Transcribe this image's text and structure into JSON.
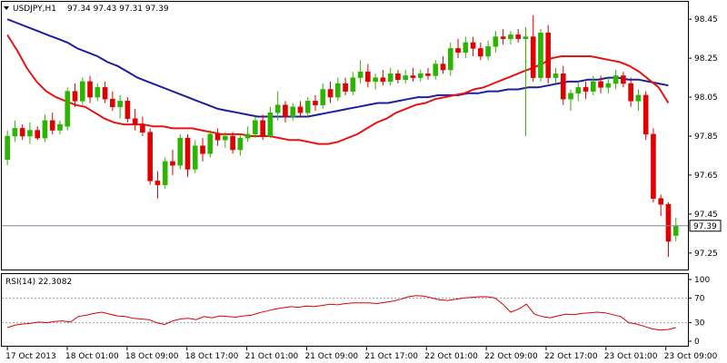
{
  "header": {
    "symbol": "USDJPY,H1",
    "ohlc": "97.34 97.43 97.31 97.39",
    "rsi_label": "RSI(14) 22.3082"
  },
  "price_tag": "97.39",
  "colors": {
    "bull": "#2db400",
    "bear": "#e00000",
    "ma_fast": "#e81414",
    "ma_slow": "#1e1ea0",
    "rsi": "#e00000",
    "grid": "#9aa0a6",
    "frame": "#000000",
    "tag_bg": "#ffffff"
  },
  "chart_data": [
    {
      "type": "candlestick",
      "timeframe": "H1",
      "y_ticks": [
        97.25,
        97.45,
        97.65,
        97.85,
        98.05,
        98.25,
        98.45
      ],
      "ylim": [
        97.17,
        98.53
      ],
      "current_price": 97.39,
      "x_tick_labels": [
        "17 Oct 2013",
        "18 Oct 01:00",
        "18 Oct 09:00",
        "18 Oct 17:00",
        "21 Oct 01:00",
        "21 Oct 09:00",
        "21 Oct 17:00",
        "22 Oct 01:00",
        "22 Oct 09:00",
        "22 Oct 17:00",
        "23 Oct 01:00",
        "23 Oct 09:00"
      ],
      "candles": [
        [
          97.73,
          97.88,
          97.7,
          97.85
        ],
        [
          97.85,
          97.93,
          97.82,
          97.89
        ],
        [
          97.89,
          97.91,
          97.83,
          97.85
        ],
        [
          97.85,
          97.92,
          97.81,
          97.88
        ],
        [
          97.88,
          97.9,
          97.83,
          97.84
        ],
        [
          97.84,
          97.96,
          97.82,
          97.93
        ],
        [
          97.93,
          97.97,
          97.86,
          97.88
        ],
        [
          97.88,
          97.93,
          97.86,
          97.91
        ],
        [
          97.9,
          98.1,
          97.88,
          98.08
        ],
        [
          98.08,
          98.12,
          98.0,
          98.03
        ],
        [
          98.03,
          98.15,
          98.01,
          98.13
        ],
        [
          98.13,
          98.16,
          98.02,
          98.05
        ],
        [
          98.05,
          98.12,
          98.03,
          98.1
        ],
        [
          98.1,
          98.13,
          98.02,
          98.04
        ],
        [
          98.04,
          98.08,
          97.98,
          98.0
        ],
        [
          98.0,
          98.06,
          97.94,
          98.03
        ],
        [
          98.03,
          98.05,
          97.92,
          97.94
        ],
        [
          97.94,
          97.99,
          97.88,
          97.91
        ],
        [
          97.91,
          97.95,
          97.85,
          97.87
        ],
        [
          97.87,
          97.89,
          97.6,
          97.62
        ],
        [
          97.62,
          97.67,
          97.53,
          97.6
        ],
        [
          97.6,
          97.74,
          97.58,
          97.72
        ],
        [
          97.72,
          97.78,
          97.65,
          97.7
        ],
        [
          97.7,
          97.86,
          97.68,
          97.84
        ],
        [
          97.84,
          97.86,
          97.64,
          97.68
        ],
        [
          97.68,
          97.83,
          97.66,
          97.8
        ],
        [
          97.8,
          97.84,
          97.72,
          97.76
        ],
        [
          97.76,
          97.88,
          97.74,
          97.86
        ],
        [
          97.86,
          97.89,
          97.8,
          97.83
        ],
        [
          97.83,
          97.87,
          97.79,
          97.85
        ],
        [
          97.85,
          97.87,
          97.76,
          97.78
        ],
        [
          97.78,
          97.86,
          97.75,
          97.84
        ],
        [
          97.84,
          97.9,
          97.82,
          97.86
        ],
        [
          97.86,
          97.95,
          97.84,
          97.93
        ],
        [
          97.93,
          97.96,
          97.83,
          97.85
        ],
        [
          97.85,
          98.0,
          97.84,
          97.97
        ],
        [
          97.97,
          98.08,
          97.93,
          98.01
        ],
        [
          98.01,
          98.03,
          97.92,
          97.95
        ],
        [
          97.95,
          98.02,
          97.93,
          98.0
        ],
        [
          98.0,
          98.03,
          97.95,
          97.97
        ],
        [
          97.97,
          98.05,
          97.95,
          98.03
        ],
        [
          98.03,
          98.06,
          97.98,
          98.01
        ],
        [
          98.01,
          98.12,
          97.99,
          98.09
        ],
        [
          98.09,
          98.13,
          98.02,
          98.05
        ],
        [
          98.05,
          98.15,
          98.03,
          98.12
        ],
        [
          98.12,
          98.15,
          98.06,
          98.08
        ],
        [
          98.08,
          98.18,
          98.06,
          98.15
        ],
        [
          98.15,
          98.24,
          98.12,
          98.18
        ],
        [
          98.18,
          98.22,
          98.1,
          98.13
        ],
        [
          98.13,
          98.17,
          98.09,
          98.15
        ],
        [
          98.15,
          98.19,
          98.11,
          98.13
        ],
        [
          98.13,
          98.2,
          98.11,
          98.17
        ],
        [
          98.17,
          98.19,
          98.12,
          98.14
        ],
        [
          98.14,
          98.19,
          98.12,
          98.16
        ],
        [
          98.16,
          98.2,
          98.13,
          98.15
        ],
        [
          98.15,
          98.19,
          98.13,
          98.17
        ],
        [
          98.17,
          98.2,
          98.14,
          98.16
        ],
        [
          98.16,
          98.24,
          98.14,
          98.22
        ],
        [
          98.22,
          98.26,
          98.17,
          98.19
        ],
        [
          98.19,
          98.33,
          98.16,
          98.3
        ],
        [
          98.3,
          98.35,
          98.25,
          98.28
        ],
        [
          98.28,
          98.36,
          98.25,
          98.33
        ],
        [
          98.33,
          98.36,
          98.26,
          98.3
        ],
        [
          98.3,
          98.33,
          98.24,
          98.26
        ],
        [
          98.26,
          98.34,
          98.24,
          98.31
        ],
        [
          98.31,
          98.39,
          98.28,
          98.36
        ],
        [
          98.36,
          98.4,
          98.32,
          98.35
        ],
        [
          98.35,
          98.39,
          98.32,
          98.37
        ],
        [
          98.37,
          98.4,
          98.33,
          98.35
        ],
        [
          98.35,
          98.41,
          97.85,
          98.36
        ],
        [
          98.36,
          98.47,
          98.13,
          98.15
        ],
        [
          98.15,
          98.4,
          98.13,
          98.38
        ],
        [
          98.38,
          98.42,
          98.12,
          98.15
        ],
        [
          98.15,
          98.2,
          98.12,
          98.17
        ],
        [
          98.17,
          98.21,
          98.01,
          98.04
        ],
        [
          98.04,
          98.09,
          97.98,
          98.07
        ],
        [
          98.07,
          98.13,
          98.03,
          98.1
        ],
        [
          98.1,
          98.13,
          98.04,
          98.08
        ],
        [
          98.08,
          98.16,
          98.06,
          98.13
        ],
        [
          98.13,
          98.16,
          98.07,
          98.1
        ],
        [
          98.1,
          98.15,
          98.07,
          98.12
        ],
        [
          98.12,
          98.19,
          98.09,
          98.16
        ],
        [
          98.16,
          98.18,
          98.1,
          98.12
        ],
        [
          98.12,
          98.15,
          98.0,
          98.03
        ],
        [
          98.03,
          98.09,
          97.98,
          98.06
        ],
        [
          98.06,
          98.08,
          97.83,
          97.86
        ],
        [
          97.86,
          97.89,
          97.51,
          97.53
        ],
        [
          97.53,
          97.55,
          97.44,
          97.5
        ],
        [
          97.5,
          97.51,
          97.23,
          97.31
        ],
        [
          97.34,
          97.43,
          97.31,
          97.39
        ]
      ],
      "ma_fast": [
        98.37,
        98.29,
        98.2,
        98.13,
        98.08,
        98.05,
        98.03,
        98.01,
        98.0,
        97.97,
        97.94,
        97.92,
        97.91,
        97.91,
        97.91,
        97.9,
        97.9,
        97.89,
        97.89,
        97.89,
        97.88,
        97.87,
        97.86,
        97.86,
        97.86,
        97.85,
        97.85,
        97.85,
        97.84,
        97.83,
        97.83,
        97.82,
        97.81,
        97.81,
        97.82,
        97.84,
        97.86,
        97.89,
        97.92,
        97.94,
        97.97,
        97.99,
        98.01,
        98.02,
        98.04,
        98.05,
        98.06,
        98.07,
        98.09,
        98.1,
        98.12,
        98.14,
        98.16,
        98.18,
        98.2,
        98.22,
        98.25,
        98.26,
        98.26,
        98.26,
        98.26,
        98.25,
        98.24,
        98.23,
        98.21,
        98.18,
        98.14,
        98.1,
        98.02
      ],
      "ma_slow": [
        98.45,
        98.43,
        98.41,
        98.39,
        98.37,
        98.35,
        98.33,
        98.3,
        98.28,
        98.26,
        98.23,
        98.21,
        98.18,
        98.15,
        98.13,
        98.11,
        98.09,
        98.07,
        98.05,
        98.03,
        98.01,
        97.99,
        97.98,
        97.97,
        97.96,
        97.95,
        97.95,
        97.95,
        97.95,
        97.95,
        97.95,
        97.96,
        97.97,
        97.98,
        97.99,
        98.0,
        98.01,
        98.02,
        98.02,
        98.03,
        98.04,
        98.05,
        98.05,
        98.06,
        98.06,
        98.06,
        98.07,
        98.07,
        98.08,
        98.08,
        98.09,
        98.09,
        98.1,
        98.1,
        98.11,
        98.12,
        98.13,
        98.13,
        98.14,
        98.14,
        98.15,
        98.15,
        98.14,
        98.14,
        98.13,
        98.12,
        98.11
      ],
      "ma_start_index": 0,
      "ma_fast_end_index": 91,
      "ma_slow_end_index": 91
    },
    {
      "type": "line",
      "title": "RSI(14) 22.3082",
      "ylim": [
        0,
        100
      ],
      "y_ticks": [
        0,
        30,
        70,
        100
      ],
      "levels": [
        30,
        70
      ],
      "values": [
        22,
        26,
        28,
        29,
        31,
        30,
        32,
        33,
        31,
        40,
        42,
        45,
        47,
        44,
        41,
        40,
        37,
        36,
        35,
        30,
        27,
        33,
        36,
        37,
        35,
        40,
        38,
        41,
        40,
        39,
        41,
        42,
        46,
        49,
        52,
        54,
        56,
        55,
        57,
        56,
        58,
        60,
        59,
        61,
        62,
        62,
        62,
        61,
        63,
        65,
        68,
        72,
        74,
        73,
        70,
        67,
        66,
        68,
        70,
        71,
        72,
        72,
        70,
        60,
        47,
        52,
        60,
        44,
        40,
        38,
        41,
        44,
        43,
        45,
        46,
        47,
        46,
        43,
        40,
        30,
        28,
        24,
        20,
        18,
        19,
        22
      ]
    }
  ]
}
